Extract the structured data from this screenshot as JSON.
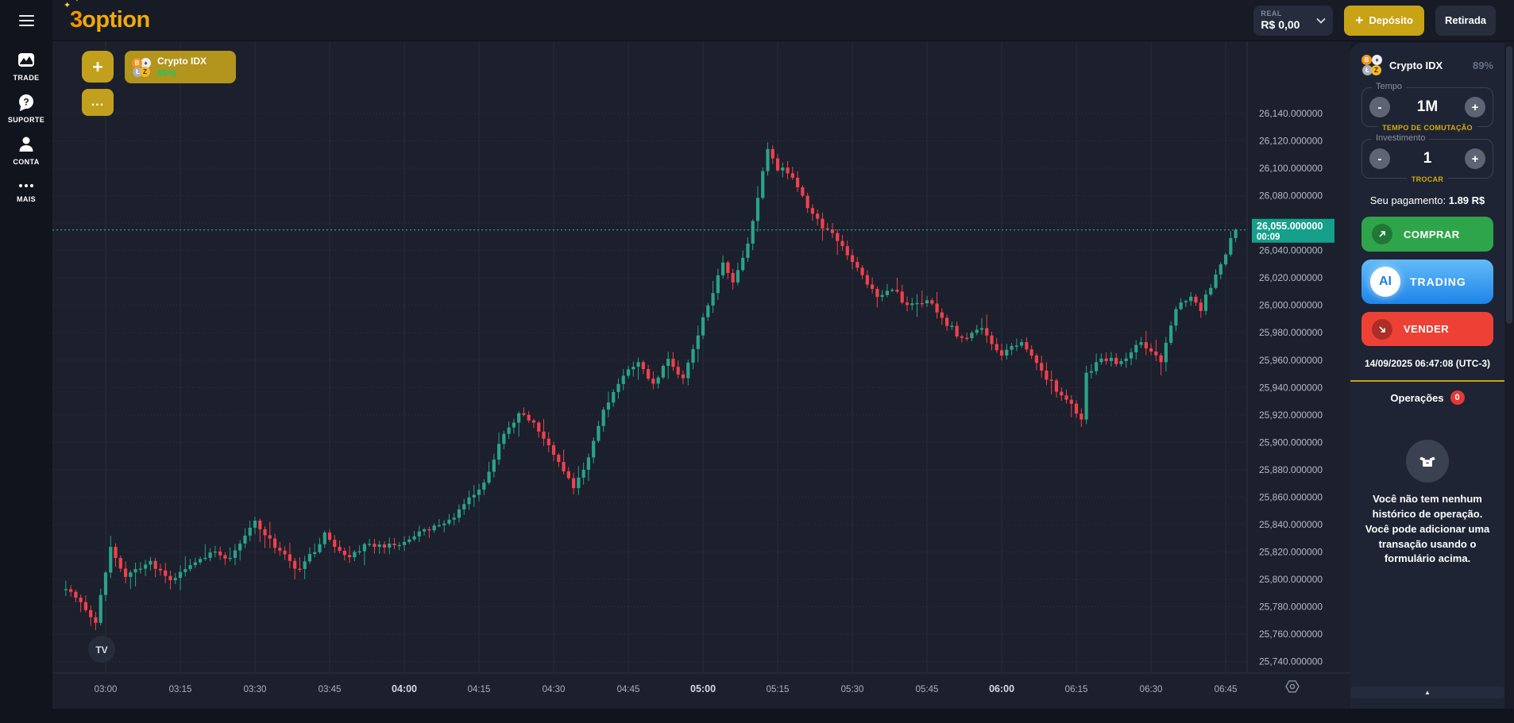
{
  "brand": {
    "logo_3": "3",
    "logo_option": "option",
    "spark": "✦"
  },
  "topbar": {
    "balance_label": "REAL",
    "balance_value": "R$ 0,00",
    "deposit_plus": "+",
    "deposit_label": "Depósito",
    "withdraw_label": "Retirada"
  },
  "sidebar": {
    "items": [
      {
        "id": "trade",
        "label": "TRADE"
      },
      {
        "id": "suporte",
        "label": "SUPORTE"
      },
      {
        "id": "conta",
        "label": "CONTA"
      },
      {
        "id": "mais",
        "label": "MAIS"
      }
    ]
  },
  "chart_tabs": {
    "add_label": "+",
    "more_label": "...",
    "active_tab": {
      "name": "Crypto IDX",
      "payout": "89%"
    },
    "coin_letters": {
      "btc": "B",
      "eth": "♦",
      "ltc": "Ł",
      "zec": "Z"
    }
  },
  "trade_panel": {
    "asset": {
      "name": "Crypto IDX",
      "payout": "89%"
    },
    "tempo": {
      "legend": "Tempo",
      "value": "1M",
      "sub_label": "TEMPO DE COMUTAÇÃO",
      "minus": "-",
      "plus": "+"
    },
    "investimento": {
      "legend": "Investimento",
      "value": "1",
      "sub_label": "TROCAR",
      "minus": "-",
      "plus": "+"
    },
    "payout_line": {
      "label": "Seu pagamento:",
      "value": "1.89 R$"
    },
    "buttons": {
      "buy": "COMPRAR",
      "ai_badge": "AI",
      "ai": "TRADING",
      "sell": "VENDER"
    },
    "timestamp": "14/09/2025 06:47:08 (UTC-3)",
    "operations": {
      "label": "Operações",
      "count": "0",
      "empty_text": "Você não tem nenhum histórico de operação. Você pode adicionar uma transação usando o formulário acima."
    },
    "collapse_caret": "▲"
  },
  "watermark_text": "TV",
  "chart_data": {
    "type": "candlestick",
    "symbol": "Crypto IDX",
    "interval_minutes": 1,
    "visible_time_range": [
      "02:52",
      "06:47"
    ],
    "price_axis": {
      "min": 25740,
      "max": 26140,
      "step": 20,
      "decimals_suffix": ".000000"
    },
    "time_ticks": [
      "03:00",
      "03:15",
      "03:30",
      "03:45",
      "04:00",
      "04:15",
      "04:30",
      "04:45",
      "05:00",
      "05:15",
      "05:30",
      "05:45",
      "06:00",
      "06:15",
      "06:30",
      "06:45"
    ],
    "major_ticks": [
      "04:00",
      "05:00",
      "06:00"
    ],
    "current_price": "26,055.000000",
    "current_price_value": 26055,
    "countdown": "00:09",
    "up_color": "#2aa389",
    "down_color": "#f0414d",
    "line_color": "#2fbfa4",
    "price_label_bg": "#14a08b",
    "keypoints": [
      [
        0,
        25795
      ],
      [
        3,
        25784
      ],
      [
        6,
        25768
      ],
      [
        9,
        25824
      ],
      [
        12,
        25801
      ],
      [
        17,
        25812
      ],
      [
        21,
        25798
      ],
      [
        25,
        25810
      ],
      [
        29,
        25820
      ],
      [
        33,
        25816
      ],
      [
        38,
        25842
      ],
      [
        42,
        25824
      ],
      [
        47,
        25806
      ],
      [
        52,
        25832
      ],
      [
        56,
        25816
      ],
      [
        61,
        25826
      ],
      [
        66,
        25824
      ],
      [
        71,
        25833
      ],
      [
        76,
        25840
      ],
      [
        79,
        25850
      ],
      [
        84,
        25872
      ],
      [
        88,
        25905
      ],
      [
        91,
        25922
      ],
      [
        94,
        25915
      ],
      [
        98,
        25890
      ],
      [
        102,
        25868
      ],
      [
        104,
        25878
      ],
      [
        108,
        25922
      ],
      [
        112,
        25950
      ],
      [
        115,
        25958
      ],
      [
        118,
        25942
      ],
      [
        121,
        25960
      ],
      [
        124,
        25946
      ],
      [
        127,
        25980
      ],
      [
        130,
        26010
      ],
      [
        132,
        26030
      ],
      [
        134,
        26018
      ],
      [
        137,
        26043
      ],
      [
        139,
        26080
      ],
      [
        141,
        26112
      ],
      [
        143,
        26100
      ],
      [
        146,
        26095
      ],
      [
        149,
        26072
      ],
      [
        152,
        26057
      ],
      [
        155,
        26048
      ],
      [
        159,
        26028
      ],
      [
        163,
        26005
      ],
      [
        166,
        26013
      ],
      [
        169,
        25998
      ],
      [
        173,
        26004
      ],
      [
        176,
        25990
      ],
      [
        180,
        25976
      ],
      [
        184,
        25982
      ],
      [
        188,
        25965
      ],
      [
        192,
        25972
      ],
      [
        196,
        25952
      ],
      [
        200,
        25934
      ],
      [
        204,
        25918
      ],
      [
        205,
        25950
      ],
      [
        208,
        25962
      ],
      [
        212,
        25958
      ],
      [
        216,
        25974
      ],
      [
        220,
        25958
      ],
      [
        223,
        25998
      ],
      [
        226,
        26008
      ],
      [
        228,
        25998
      ],
      [
        230,
        26014
      ],
      [
        232,
        26030
      ],
      [
        234,
        26048
      ],
      [
        235,
        26055
      ]
    ]
  }
}
